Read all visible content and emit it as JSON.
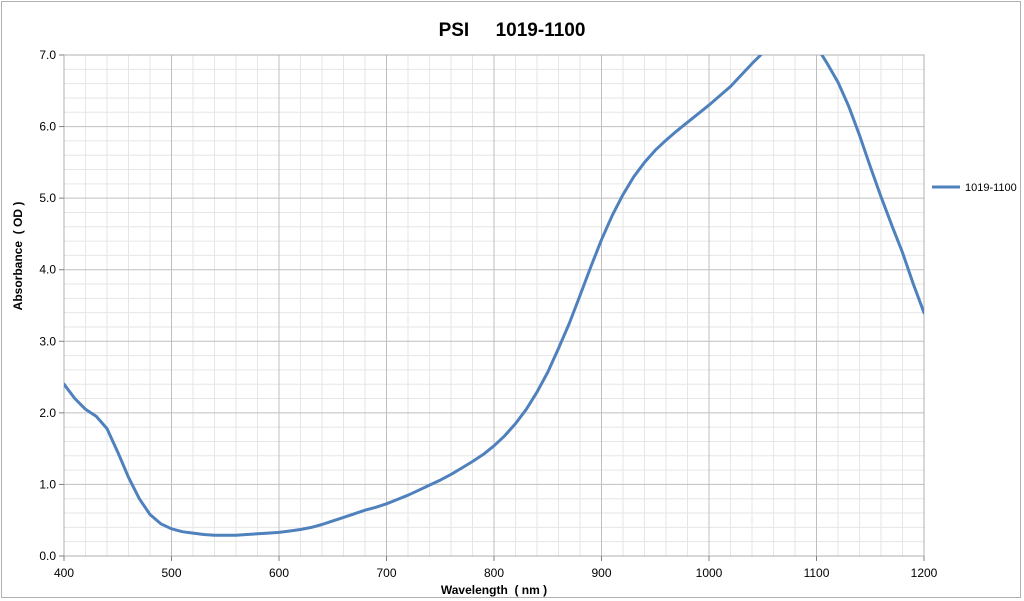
{
  "chart_data": {
    "type": "line",
    "title": "PSI     1019-1100",
    "xlabel": "Wavelength  ( nm )",
    "ylabel": "Absorbance  ( OD )",
    "xlim": [
      400,
      1200
    ],
    "ylim": [
      0,
      7
    ],
    "x_ticks": [
      400,
      500,
      600,
      700,
      800,
      900,
      1000,
      1100,
      1200
    ],
    "x_tick_labels": [
      "400",
      "500",
      "600",
      "700",
      "800",
      "900",
      "1000",
      "1100",
      "1200"
    ],
    "y_ticks": [
      0,
      1,
      2,
      3,
      4,
      5,
      6,
      7
    ],
    "y_tick_labels": [
      "0.0",
      "1.0",
      "2.0",
      "3.0",
      "4.0",
      "5.0",
      "6.0",
      "7.0"
    ],
    "grid": true,
    "legend_position": "right",
    "series": [
      {
        "name": "1019-1100",
        "color": "#4f81bd",
        "x": [
          400,
          410,
          420,
          430,
          440,
          450,
          460,
          470,
          480,
          490,
          500,
          510,
          520,
          530,
          540,
          550,
          560,
          570,
          580,
          590,
          600,
          610,
          620,
          630,
          640,
          650,
          660,
          670,
          680,
          690,
          700,
          710,
          720,
          730,
          740,
          750,
          760,
          770,
          780,
          790,
          800,
          810,
          820,
          830,
          840,
          850,
          860,
          870,
          880,
          890,
          900,
          910,
          920,
          930,
          940,
          950,
          960,
          970,
          980,
          990,
          1000,
          1010,
          1020,
          1030,
          1040,
          1050,
          1055,
          1060,
          1070,
          1080,
          1090,
          1100,
          1105,
          1110,
          1120,
          1130,
          1140,
          1150,
          1160,
          1170,
          1180,
          1190,
          1200
        ],
        "y": [
          2.4,
          2.2,
          2.05,
          1.95,
          1.78,
          1.45,
          1.1,
          0.8,
          0.58,
          0.45,
          0.38,
          0.34,
          0.32,
          0.3,
          0.29,
          0.29,
          0.29,
          0.3,
          0.31,
          0.32,
          0.33,
          0.35,
          0.37,
          0.4,
          0.44,
          0.49,
          0.54,
          0.59,
          0.64,
          0.68,
          0.73,
          0.79,
          0.85,
          0.92,
          0.99,
          1.06,
          1.14,
          1.23,
          1.32,
          1.42,
          1.54,
          1.68,
          1.85,
          2.05,
          2.29,
          2.57,
          2.9,
          3.25,
          3.64,
          4.04,
          4.42,
          4.76,
          5.05,
          5.3,
          5.5,
          5.67,
          5.81,
          5.94,
          6.06,
          6.18,
          6.3,
          6.43,
          6.56,
          6.72,
          6.88,
          7.03,
          7.1,
          7.16,
          7.28,
          7.36,
          7.3,
          7.12,
          7.0,
          6.88,
          6.62,
          6.28,
          5.88,
          5.44,
          5.02,
          4.62,
          4.24,
          3.8,
          3.4
        ]
      }
    ]
  }
}
